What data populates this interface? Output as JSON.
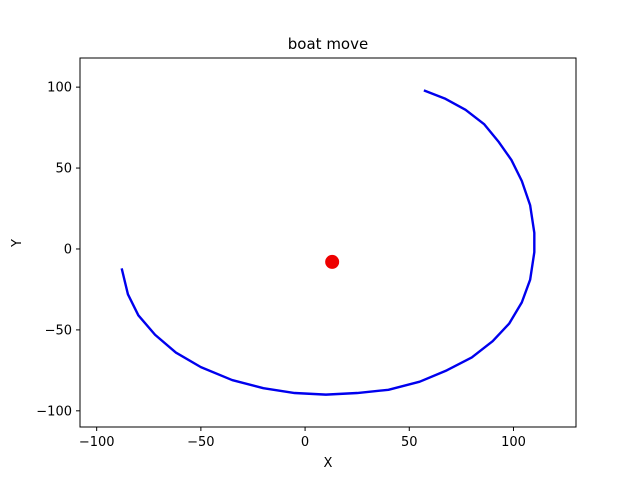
{
  "chart_data": {
    "type": "line",
    "title": "boat move",
    "xlabel": "X",
    "ylabel": "Y",
    "xlim": [
      -108,
      130
    ],
    "ylim": [
      -110,
      118
    ],
    "xticks": [
      -100,
      -50,
      0,
      50,
      100
    ],
    "yticks": [
      -100,
      -50,
      0,
      50,
      100
    ],
    "xtick_labels": [
      "−100",
      "−50",
      "0",
      "50",
      "100"
    ],
    "ytick_labels": [
      "−100",
      "−50",
      "0",
      "50",
      "100"
    ],
    "grid": false,
    "series": [
      {
        "color": "#0000ee",
        "x": [
          57,
          67,
          77,
          86,
          93,
          99,
          104,
          108,
          110,
          110,
          108,
          104,
          98,
          90,
          80,
          68,
          55,
          40,
          25,
          10,
          -5,
          -20,
          -35,
          -50,
          -62,
          -72,
          -80,
          -85,
          -88
        ],
        "y": [
          98,
          93,
          86,
          77,
          66,
          55,
          42,
          27,
          10,
          -2,
          -19,
          -33,
          -46,
          -57,
          -67,
          -75,
          -82,
          -87,
          -89,
          -90,
          -89,
          -86,
          -81,
          -73,
          -64,
          -53,
          -41,
          -28,
          -12
        ]
      }
    ],
    "points": [
      {
        "x": 13,
        "y": -8,
        "color": "#ee0000"
      }
    ]
  }
}
